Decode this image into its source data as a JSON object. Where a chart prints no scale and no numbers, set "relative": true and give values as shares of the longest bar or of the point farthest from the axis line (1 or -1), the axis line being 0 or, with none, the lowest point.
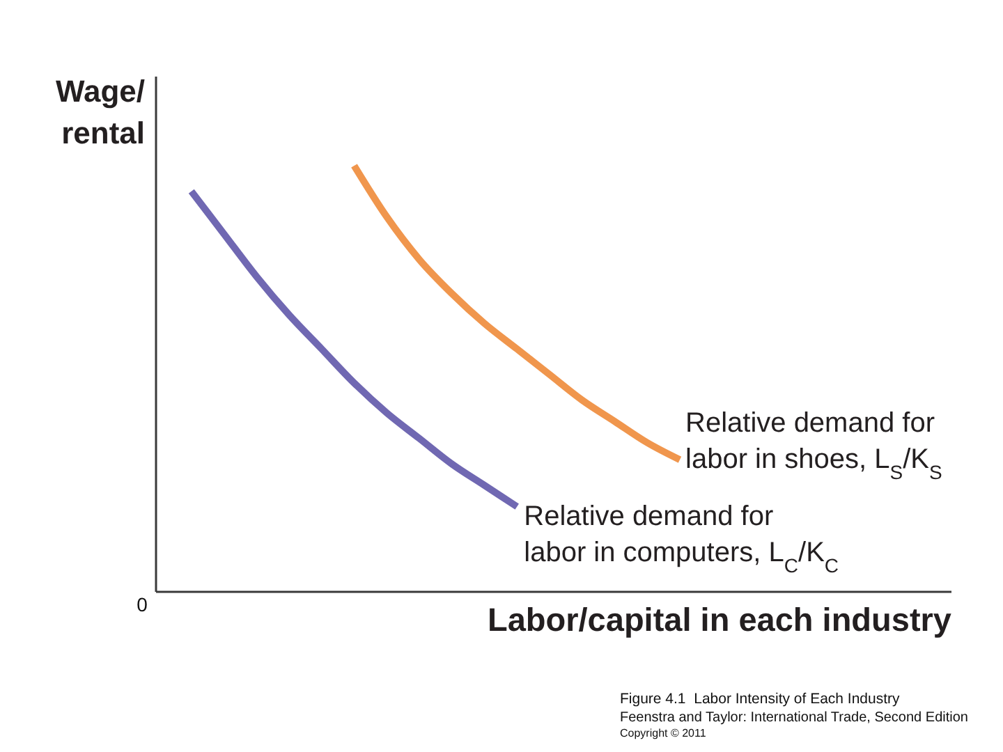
{
  "chart_data": {
    "type": "line",
    "relative": true,
    "title": "Figure 4.1  Labor Intensity of Each Industry",
    "xlabel": "Labor/capital in each industry",
    "ylabel": "Wage/rental",
    "annotations": [
      "0",
      "Feenstra and Taylor: International Trade, Second Edition",
      "Copyright © 2011"
    ],
    "categories": [
      null,
      null,
      null,
      null,
      null,
      null,
      null,
      null,
      null,
      null,
      null,
      null,
      null,
      null,
      null,
      null,
      null,
      null,
      null,
      null,
      null,
      null,
      null,
      null,
      null
    ],
    "series": [
      {
        "name": "Relative demand for labor in shoes, L$_{S}$/K$_{S}$",
        "color": "#f0964d",
        "values": [
          null,
          null,
          null,
          null,
          null,
          null,
          1.0,
          0.88,
          0.78,
          0.7,
          0.63,
          0.57,
          0.51,
          0.45,
          0.4,
          0.35,
          0.31,
          null,
          null,
          null,
          null,
          null,
          null,
          null,
          null
        ]
      },
      {
        "name": "Relative demand for labor in computers, L$_{C}$/K$_{C}$",
        "color": "#7068b2",
        "values": [
          null,
          0.94,
          0.84,
          0.74,
          0.65,
          0.57,
          0.49,
          0.42,
          0.36,
          0.3,
          0.25,
          0.2,
          null,
          null,
          null,
          null,
          null,
          null,
          null,
          null,
          null,
          null,
          null,
          null,
          null
        ]
      }
    ]
  }
}
